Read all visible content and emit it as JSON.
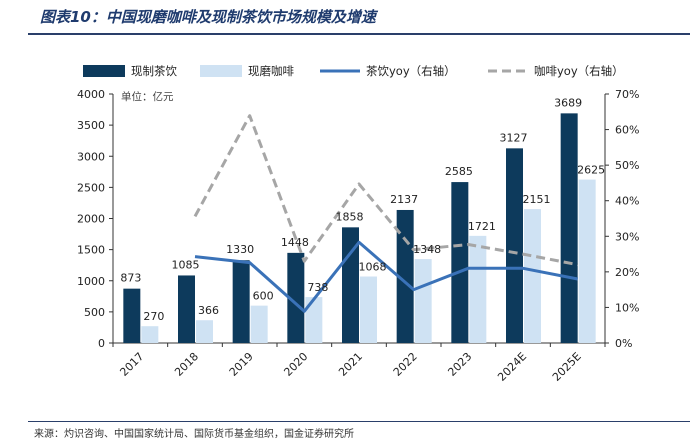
{
  "header": {
    "title": "图表10：中国现磨咖啡及现制茶饮市场规模及增速"
  },
  "footer": {
    "source": "来源：灼识咨询、中国国家统计局、国际货币基金组织，国金证券研究所"
  },
  "chart_data": {
    "type": "bar",
    "unit_label": "单位：亿元",
    "categories": [
      "2017",
      "2018",
      "2019",
      "2020",
      "2021",
      "2022",
      "2023",
      "2024E",
      "2025E"
    ],
    "y_left": {
      "min": 0,
      "max": 4000,
      "step": 500,
      "ticks": [
        "0",
        "500",
        "1000",
        "1500",
        "2000",
        "2500",
        "3000",
        "3500",
        "4000"
      ]
    },
    "y_right": {
      "min": 0,
      "max": 0.7,
      "step": 0.1,
      "ticks": [
        "0%",
        "10%",
        "20%",
        "30%",
        "40%",
        "50%",
        "60%",
        "70%"
      ]
    },
    "series": [
      {
        "name": "现制茶饮",
        "kind": "bar",
        "axis": "left",
        "color": "#0d3a5c",
        "values": [
          873,
          1085,
          1330,
          1448,
          1858,
          2137,
          2585,
          3127,
          3689
        ],
        "labels": [
          "873",
          "1085",
          "1330",
          "1448",
          "1858",
          "2137",
          "2585",
          "3127",
          "3689"
        ]
      },
      {
        "name": "现磨咖啡",
        "kind": "bar",
        "axis": "left",
        "color": "#cfe2f3",
        "values": [
          270,
          366,
          600,
          738,
          1068,
          1348,
          1721,
          2151,
          2625
        ],
        "labels": [
          "270",
          "366",
          "600",
          "738",
          "1068",
          "1348",
          "1721",
          "2151",
          "2625"
        ]
      },
      {
        "name": "茶饮yoy（右轴）",
        "kind": "line",
        "axis": "right",
        "color": "#3a72b8",
        "values": [
          null,
          0.243,
          0.226,
          0.089,
          0.283,
          0.15,
          0.21,
          0.21,
          0.18
        ]
      },
      {
        "name": "咖啡yoy（右轴）",
        "kind": "line",
        "axis": "right",
        "color": "#a6a6a6",
        "dashed": true,
        "values": [
          null,
          0.356,
          0.639,
          0.23,
          0.447,
          0.262,
          0.277,
          0.25,
          0.22
        ]
      }
    ],
    "legend_position": "top",
    "grid": false
  }
}
